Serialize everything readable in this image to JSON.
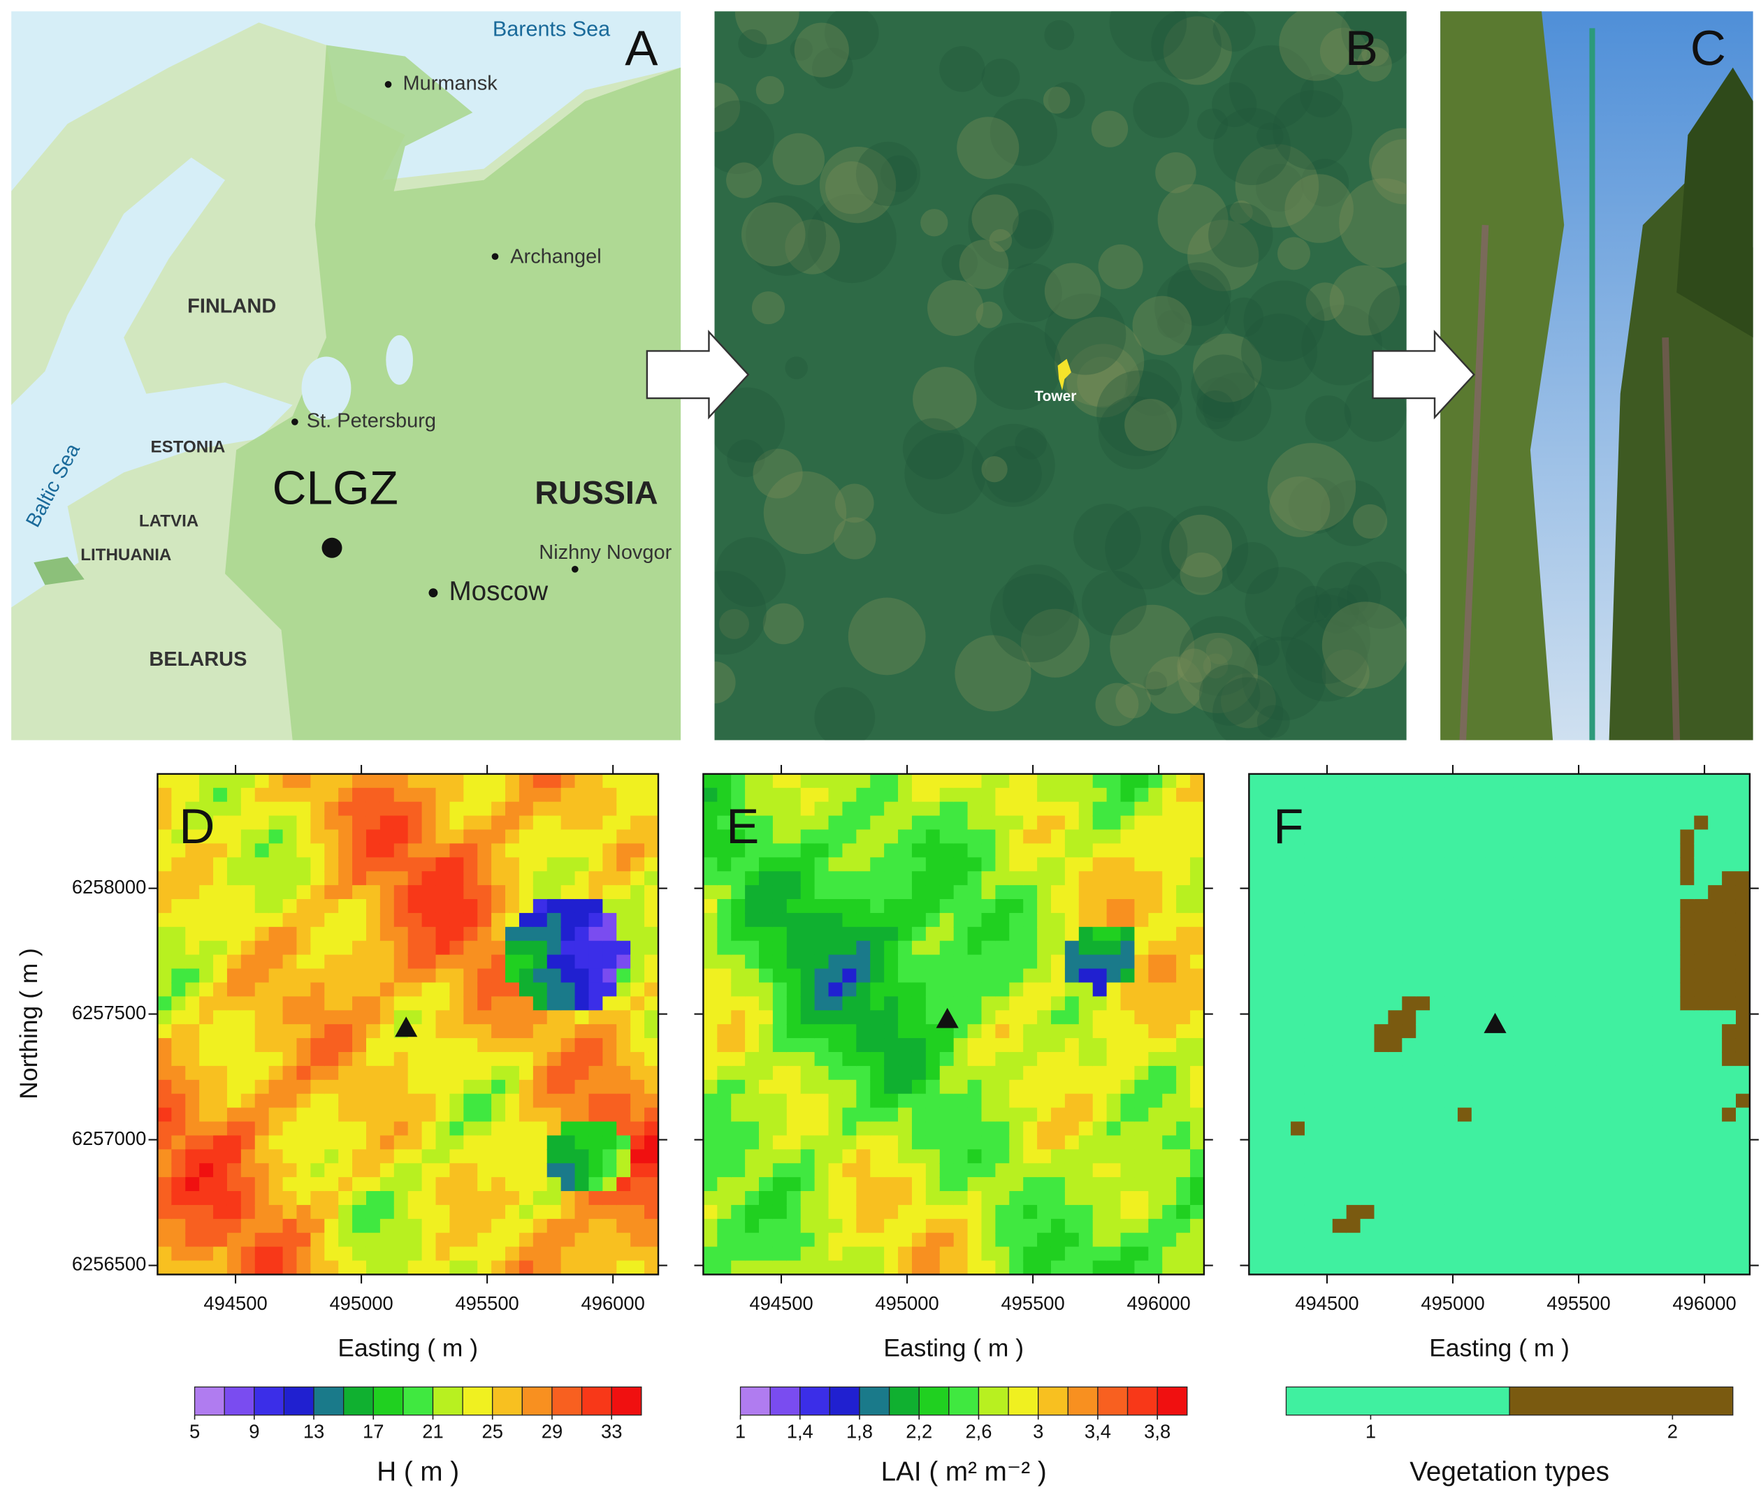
{
  "map": {
    "letter": "A",
    "labels": [
      "Barents Sea",
      "Murmansk",
      "Archangel",
      "FINLAND",
      "St. Petersburg",
      "ESTONIA",
      "Baltic Sea",
      "CLGZ",
      "RUSSIA",
      "LATVIA",
      "LITHUANIA",
      "Nizhny Novgor",
      "Moscow",
      "BELARUS"
    ]
  },
  "aerial": {
    "letter": "B",
    "marker": "Tower"
  },
  "photo": {
    "letter": "C"
  },
  "axes": {
    "xlabel": "Easting ( m )",
    "ylabel": "Northing ( m )",
    "xlim": [
      494190,
      496180
    ],
    "ylim": [
      6256464,
      6258455
    ],
    "xticks": [
      494500,
      495000,
      495500,
      496000
    ],
    "yticks": [
      6256500,
      6257000,
      6257500,
      6258000
    ]
  },
  "plots": [
    {
      "letter": "D",
      "tower": [
        495178,
        6257445
      ],
      "colorbar": {
        "title": "H ( m )",
        "lim": [
          5,
          35
        ],
        "ticks": [
          5,
          9,
          13,
          17,
          21,
          25,
          29,
          33
        ],
        "colors": [
          "#b07cf0",
          "#7a4cf0",
          "#3b2ee8",
          "#2020d0",
          "#1a7a8a",
          "#10b030",
          "#20d020",
          "#40e840",
          "#b8f020",
          "#f0f020",
          "#f8c020",
          "#f89020",
          "#f86020",
          "#f83818",
          "#f01010"
        ]
      }
    },
    {
      "letter": "E",
      "tower": [
        495160,
        6257480
      ],
      "colorbar": {
        "title": "LAI ( m² m⁻² )",
        "lim": [
          1,
          4
        ],
        "ticks": [
          1,
          {
            "value": 1.4,
            "label": "1,4"
          },
          {
            "value": 1.8,
            "label": "1,8"
          },
          {
            "value": 2.2,
            "label": "2,2"
          },
          {
            "value": 2.6,
            "label": "2,6"
          },
          3,
          {
            "value": 3.4,
            "label": "3,4"
          },
          {
            "value": 3.8,
            "label": "3,8"
          }
        ],
        "colors": [
          "#b07cf0",
          "#7a4cf0",
          "#3b2ee8",
          "#2020d0",
          "#1a7a8a",
          "#10b030",
          "#20d020",
          "#40e840",
          "#b8f020",
          "#f0f020",
          "#f8c020",
          "#f89020",
          "#f86020",
          "#f83818",
          "#f01010"
        ]
      }
    },
    {
      "letter": "F",
      "tower": [
        495168,
        6257460
      ],
      "colorbar": {
        "title": "Vegetation types",
        "lim": [
          0.72,
          2.2
        ],
        "ticks": [
          1,
          2
        ],
        "colors": [
          "#40f0a0",
          "#7a5a10"
        ]
      }
    }
  ]
}
